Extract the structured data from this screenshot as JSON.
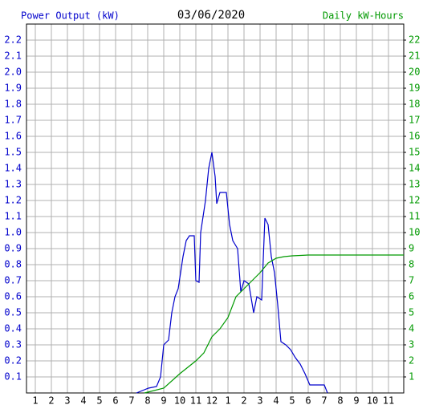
{
  "chart_data": {
    "type": "line",
    "title": "03/06/2020",
    "y_label": "Power Output (kW)",
    "y2_label": "Daily kW-Hours",
    "xlim": [
      0.45,
      23.95
    ],
    "xticks": [
      1,
      2,
      3,
      4,
      5,
      6,
      7,
      8,
      9,
      10,
      11,
      12,
      {
        "value": 13,
        "label": "1"
      },
      {
        "value": 14,
        "label": "2"
      },
      {
        "value": 15,
        "label": "3"
      },
      {
        "value": 16,
        "label": "4"
      },
      {
        "value": 17,
        "label": "5"
      },
      {
        "value": 18,
        "label": "6"
      },
      {
        "value": 19,
        "label": "7"
      },
      {
        "value": 20,
        "label": "8"
      },
      {
        "value": 21,
        "label": "9"
      },
      {
        "value": 22,
        "label": "10"
      },
      {
        "value": 23,
        "label": "11"
      }
    ],
    "ylim": [
      0,
      2.3
    ],
    "yticks": [
      0.1,
      0.2,
      0.3,
      0.4,
      0.5,
      0.6,
      0.7,
      0.8,
      0.9,
      {
        "value": 1,
        "label": "1.0"
      },
      1.1,
      1.2,
      1.3,
      1.4,
      1.5,
      1.6,
      1.7,
      1.8,
      1.9,
      {
        "value": 2,
        "label": "2.0"
      },
      2.1,
      2.2
    ],
    "y2lim": [
      0,
      23
    ],
    "y2ticks": [
      1,
      2,
      3,
      4,
      5,
      6,
      7,
      8,
      9,
      10,
      11,
      12,
      13,
      14,
      15,
      16,
      17,
      18,
      19,
      20,
      21,
      22
    ],
    "grid": true,
    "series": [
      {
        "name": "Power Output (kW)",
        "color": "#0000cc",
        "x": [
          7.3,
          8.05,
          8.55,
          8.8,
          9.0,
          9.3,
          9.5,
          9.7,
          9.9,
          10.2,
          10.4,
          10.6,
          10.9,
          11.0,
          11.2,
          11.3,
          11.6,
          11.8,
          12.0,
          12.2,
          12.3,
          12.5,
          12.9,
          13.1,
          13.3,
          13.6,
          13.8,
          14.0,
          14.3,
          14.6,
          14.8,
          15.1,
          15.3,
          15.5,
          15.7,
          15.9,
          16.1,
          16.3,
          16.6,
          16.9,
          17.2,
          17.5,
          17.8,
          18.1,
          19.0,
          19.2
        ],
        "values": [
          0,
          0.03,
          0.04,
          0.1,
          0.3,
          0.33,
          0.5,
          0.6,
          0.65,
          0.85,
          0.95,
          0.98,
          0.98,
          0.7,
          0.69,
          1.0,
          1.2,
          1.4,
          1.5,
          1.35,
          1.18,
          1.25,
          1.25,
          1.05,
          0.95,
          0.9,
          0.63,
          0.7,
          0.68,
          0.5,
          0.6,
          0.58,
          1.09,
          1.05,
          0.85,
          0.75,
          0.55,
          0.32,
          0.3,
          0.27,
          0.22,
          0.18,
          0.12,
          0.05,
          0.05,
          0
        ]
      },
      {
        "name": "Daily kW-Hours",
        "color": "#009900",
        "axis": "y2",
        "x": [
          7.8,
          9.0,
          10.0,
          11.0,
          11.5,
          12.0,
          12.5,
          13.0,
          13.5,
          14.0,
          14.5,
          15.0,
          15.5,
          16.0,
          16.5,
          17.0,
          18.0,
          23.95
        ],
        "values": [
          0,
          0.3,
          1.2,
          2.0,
          2.5,
          3.5,
          4.0,
          4.7,
          6.0,
          6.5,
          7.0,
          7.5,
          8.1,
          8.4,
          8.5,
          8.55,
          8.6,
          8.6
        ]
      }
    ]
  }
}
